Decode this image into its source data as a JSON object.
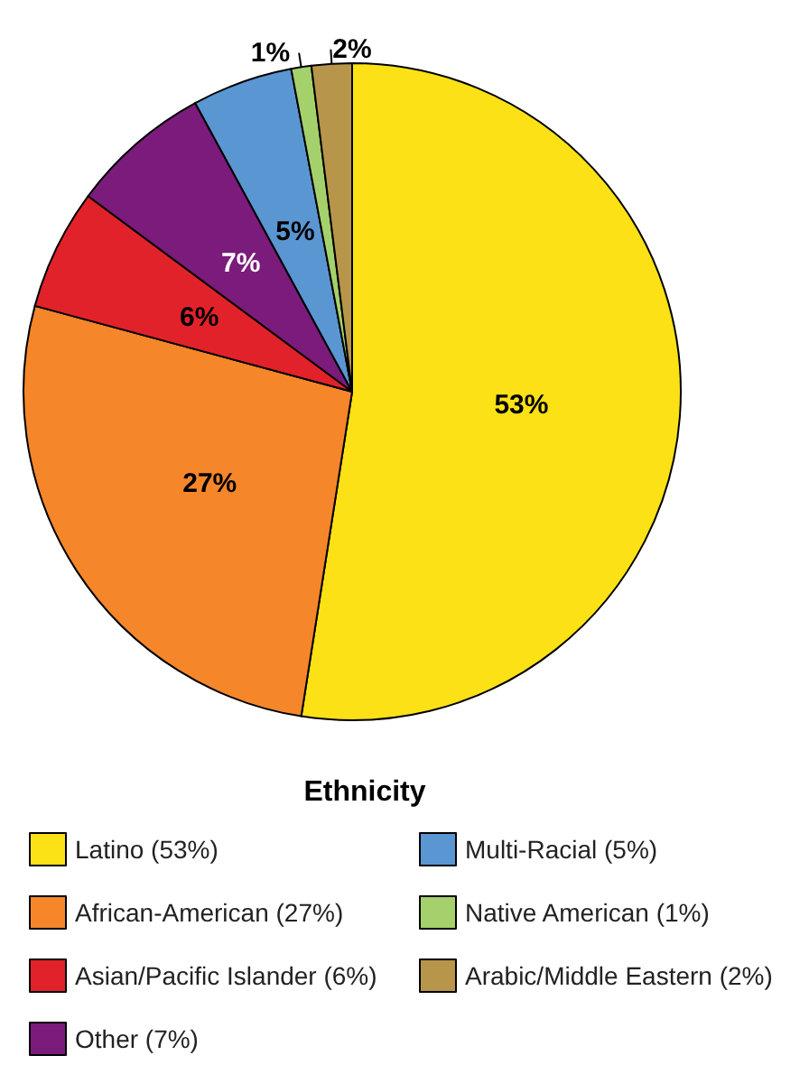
{
  "chart_data": {
    "type": "pie",
    "legend_title": "Ethnicity",
    "legend": "bottom",
    "categories": [
      "Latino (53%)",
      "African-American (27%)",
      "Asian/Pacific Islander (6%)",
      "Other (7%)",
      "Multi-Racial (5%)",
      "Native American (1%)",
      "Arabic/Middle Eastern (2%)"
    ],
    "values": [
      53,
      27,
      6,
      7,
      5,
      1,
      2
    ],
    "value_labels": [
      "53%",
      "27%",
      "6%",
      "7%",
      "5%",
      "1%",
      "2%"
    ],
    "colors": [
      "#fbe116",
      "#f5862a",
      "#e2222a",
      "#7b1b7b",
      "#5a96d1",
      "#a5d16c",
      "#b7954a"
    ]
  }
}
